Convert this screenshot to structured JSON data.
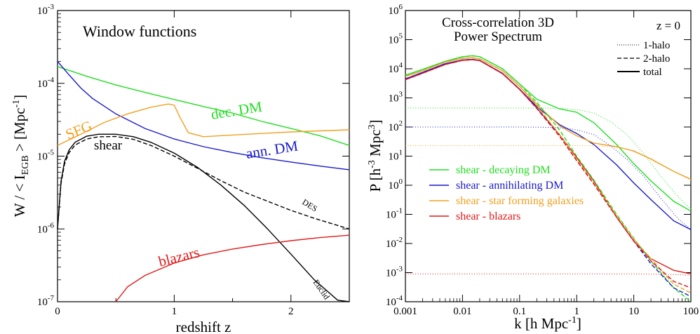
{
  "colors": {
    "green": "#22dd22",
    "blue": "#1a1acc",
    "orange": "#f0a020",
    "red": "#e01a1a",
    "black": "#000000"
  },
  "chart_data": [
    {
      "type": "line",
      "title": "Window functions",
      "xlabel": "redshift z",
      "ylabel": "W / < I_EGB > [Mpc^-1]",
      "xscale": "linear",
      "yscale": "log",
      "xlim": [
        0,
        2.5
      ],
      "ylim": [
        1e-07,
        0.001
      ],
      "x_ticks": [
        "0",
        "1",
        "2"
      ],
      "y_ticks": [
        "10^-7",
        "10^-6",
        "10^-5",
        "10^-4",
        "10^-3"
      ],
      "annotations": {
        "green": "dec. DM",
        "blue": "ann. DM",
        "orange": "SFG",
        "black": "shear",
        "red": "blazars",
        "des": "DES",
        "euclid": "Euclid"
      },
      "series": [
        {
          "key": "green",
          "color": "#22dd22",
          "style": "solid",
          "x": [
            0,
            0.25,
            0.5,
            0.75,
            1.0,
            1.25,
            1.5,
            1.75,
            2.0,
            2.25,
            2.5
          ],
          "y": [
            0.00017,
            0.000125,
            9.5e-05,
            7.5e-05,
            6e-05,
            4.8e-05,
            3.9e-05,
            3e-05,
            2.4e-05,
            1.9e-05,
            1.4e-05
          ]
        },
        {
          "key": "blue",
          "color": "#1a1acc",
          "style": "solid",
          "x": [
            0,
            0.1,
            0.2,
            0.3,
            0.5,
            0.75,
            1.0,
            1.25,
            1.5,
            1.75,
            2.0,
            2.25,
            2.5
          ],
          "y": [
            0.0002,
            0.00013,
            8.6e-05,
            6.2e-05,
            3.8e-05,
            2.4e-05,
            1.72e-05,
            1.35e-05,
            1.12e-05,
            9.5e-06,
            8.3e-06,
            7.3e-06,
            6.5e-06
          ]
        },
        {
          "key": "orange",
          "color": "#f0a020",
          "style": "solid",
          "x": [
            0,
            0.2,
            0.4,
            0.6,
            0.8,
            0.95,
            1.0,
            1.05,
            1.12,
            1.25,
            1.5,
            2.0,
            2.5
          ],
          "y": [
            1.4e-05,
            2e-05,
            2.9e-05,
            3.8e-05,
            4.7e-05,
            5.2e-05,
            5e-05,
            3.4e-05,
            2.1e-05,
            1.85e-05,
            1.95e-05,
            2.15e-05,
            2.3e-05
          ]
        },
        {
          "key": "shear_des",
          "color": "#000000",
          "style": "dashed",
          "x": [
            0,
            0.03,
            0.06,
            0.1,
            0.15,
            0.25,
            0.35,
            0.5,
            0.65,
            0.8,
            1.0,
            1.2,
            1.4,
            1.6,
            1.8,
            2.0,
            2.2,
            2.5
          ],
          "y": [
            1e-06,
            4.2e-06,
            7.8e-06,
            1.12e-05,
            1.42e-05,
            1.72e-05,
            1.84e-05,
            1.86e-05,
            1.7e-05,
            1.4e-05,
            1e-05,
            6.8e-06,
            4.6e-06,
            3.2e-06,
            2.4e-06,
            1.8e-06,
            1.4e-06,
            1e-06
          ]
        },
        {
          "key": "shear_euclid",
          "color": "#000000",
          "style": "solid",
          "x": [
            0,
            0.03,
            0.06,
            0.1,
            0.15,
            0.25,
            0.35,
            0.5,
            0.65,
            0.8,
            1.0,
            1.2,
            1.4,
            1.6,
            1.8,
            2.0,
            2.2,
            2.4,
            2.5
          ],
          "y": [
            1e-06,
            4.5e-06,
            8.5e-06,
            1.22e-05,
            1.55e-05,
            1.88e-05,
            2e-05,
            2e-05,
            1.85e-05,
            1.55e-05,
            1.1e-05,
            7e-06,
            4e-06,
            2.1e-06,
            1e-06,
            4.5e-07,
            2e-07,
            1.05e-07,
            7.5e-08
          ]
        },
        {
          "key": "red",
          "color": "#e01a1a",
          "style": "solid",
          "x": [
            0.5,
            0.6,
            0.75,
            1.0,
            1.25,
            1.5,
            1.75,
            2.0,
            2.25,
            2.5
          ],
          "y": [
            1e-07,
            1.6e-07,
            2.3e-07,
            3.4e-07,
            4.4e-07,
            5.3e-07,
            6.1e-07,
            6.9e-07,
            7.6e-07,
            8.2e-07
          ]
        }
      ]
    },
    {
      "type": "line",
      "title": "Cross-correlation 3D",
      "subtitle": "Power Spectrum",
      "annotation": "z = 0",
      "xlabel": "k [h Mpc^-1]",
      "ylabel": "P [h^-3 Mpc^3]",
      "xscale": "log",
      "yscale": "log",
      "xlim": [
        0.001,
        100
      ],
      "ylim": [
        0.0001,
        1000000.0
      ],
      "x_ticks": [
        "0.001",
        "0.01",
        "0.1",
        "1",
        "10",
        "100"
      ],
      "y_ticks": [
        "10^-4",
        "10^-3",
        "10^-2",
        "10^-1",
        "10^0",
        "10^1",
        "10^2",
        "10^3",
        "10^4",
        "10^5",
        "10^6"
      ],
      "style_legend": [
        {
          "label": "1-halo",
          "style": "dotted"
        },
        {
          "label": "2-halo",
          "style": "dashed"
        },
        {
          "label": "total",
          "style": "solid"
        }
      ],
      "legend": [
        {
          "label": "shear - decaying DM",
          "color": "#22dd22"
        },
        {
          "label": "shear - annihilating DM",
          "color": "#1a1acc"
        },
        {
          "label": "shear - star forming galaxies",
          "color": "#f0a020"
        },
        {
          "label": "shear - blazars",
          "color": "#e01a1a"
        }
      ],
      "series": [
        {
          "key": "green_total",
          "color": "#22dd22",
          "style": "solid",
          "x": [
            0.001,
            0.002,
            0.005,
            0.01,
            0.015,
            0.02,
            0.05,
            0.1,
            0.2,
            0.5,
            1,
            2,
            5,
            10,
            20,
            50,
            100
          ],
          "y": [
            6000,
            9500,
            18000,
            26000,
            28000,
            26000,
            10000,
            3000,
            900,
            420,
            320,
            140,
            25,
            5.5,
            1.4,
            0.28,
            0.13
          ]
        },
        {
          "key": "blue_total",
          "color": "#1a1acc",
          "style": "solid",
          "x": [
            0.001,
            0.002,
            0.005,
            0.01,
            0.015,
            0.02,
            0.05,
            0.1,
            0.2,
            0.5,
            1,
            2,
            5,
            10,
            20,
            50,
            100
          ],
          "y": [
            4500,
            7500,
            15000,
            20000,
            21000,
            19500,
            7000,
            2000,
            500,
            120,
            60,
            25,
            5,
            1.2,
            0.32,
            0.06,
            0.03
          ]
        },
        {
          "key": "orange_total",
          "color": "#f0a020",
          "style": "solid",
          "x": [
            0.001,
            0.002,
            0.005,
            0.01,
            0.015,
            0.02,
            0.05,
            0.1,
            0.2,
            0.5,
            1,
            2,
            5,
            10,
            20,
            50,
            100
          ],
          "y": [
            5500,
            8500,
            17000,
            23000,
            24000,
            22000,
            8500,
            2500,
            600,
            110,
            50,
            28,
            21,
            15,
            8,
            3,
            1.6
          ]
        },
        {
          "key": "red_total",
          "color": "#e01a1a",
          "style": "solid",
          "x": [
            0.001,
            0.002,
            0.005,
            0.01,
            0.015,
            0.02,
            0.05,
            0.1,
            0.2,
            0.5,
            1,
            2,
            5,
            10,
            20,
            50,
            100
          ],
          "y": [
            4200,
            7000,
            14000,
            19500,
            20500,
            19000,
            6800,
            1950,
            450,
            55,
            9,
            1.4,
            0.08,
            0.012,
            0.003,
            0.0012,
            0.0009
          ]
        },
        {
          "key": "green_2h",
          "color": "#22dd22",
          "style": "dashed",
          "x": [
            0.001,
            0.002,
            0.005,
            0.01,
            0.015,
            0.02,
            0.05,
            0.1,
            0.2,
            0.5,
            1,
            2,
            5,
            10,
            20,
            50,
            100
          ],
          "y": [
            6000,
            9500,
            18000,
            26000,
            28000,
            26000,
            10000,
            3000,
            700,
            80,
            10,
            1.5,
            0.1,
            0.015,
            0.0025,
            0.0003,
            0.0001
          ]
        },
        {
          "key": "blue_2h",
          "color": "#1a1acc",
          "style": "dashed",
          "x": [
            0.001,
            0.002,
            0.005,
            0.01,
            0.015,
            0.02,
            0.05,
            0.1,
            0.2,
            0.5,
            1,
            2,
            5,
            10,
            20,
            50,
            100
          ],
          "y": [
            4500,
            7500,
            15000,
            20000,
            21000,
            19500,
            7000,
            2000,
            450,
            50,
            7,
            1.1,
            0.08,
            0.012,
            0.002,
            0.0003,
            0.00015
          ]
        },
        {
          "key": "orange_2h",
          "color": "#f0a020",
          "style": "dashed",
          "x": [
            0.001,
            0.002,
            0.005,
            0.01,
            0.015,
            0.02,
            0.05,
            0.1,
            0.2,
            0.5,
            1,
            2,
            5,
            10,
            20,
            50,
            100
          ],
          "y": [
            5500,
            8500,
            17000,
            23000,
            24000,
            22000,
            8500,
            2500,
            550,
            55,
            8,
            1.2,
            0.09,
            0.014,
            0.003,
            0.0004,
            0.0002
          ]
        },
        {
          "key": "red_2h",
          "color": "#e01a1a",
          "style": "dashed",
          "x": [
            0.001,
            0.002,
            0.005,
            0.01,
            0.015,
            0.02,
            0.05,
            0.1,
            0.2,
            0.5,
            1,
            2,
            5,
            10,
            20,
            50,
            100
          ],
          "y": [
            4200,
            7000,
            14000,
            19500,
            20500,
            19000,
            6800,
            1950,
            430,
            48,
            7,
            1.1,
            0.08,
            0.012,
            0.0025,
            0.0005,
            0.0003
          ]
        },
        {
          "key": "green_1h",
          "color": "#22dd22",
          "style": "dotted",
          "x": [
            0.001,
            0.1,
            0.3,
            0.6,
            1,
            2,
            4,
            8,
            15,
            30,
            60,
            100
          ],
          "y": [
            450,
            450,
            445,
            430,
            400,
            300,
            150,
            50,
            12,
            2,
            0.4,
            0.15
          ]
        },
        {
          "key": "blue_1h",
          "color": "#1a1acc",
          "style": "dotted",
          "x": [
            0.001,
            0.1,
            0.3,
            0.6,
            1,
            2,
            4,
            8,
            15,
            30,
            60,
            100
          ],
          "y": [
            100,
            100,
            98,
            92,
            80,
            55,
            22,
            7,
            2,
            0.35,
            0.07,
            0.03
          ]
        },
        {
          "key": "orange_1h",
          "color": "#f0a020",
          "style": "dotted",
          "x": [
            0.001,
            0.5,
            1,
            2,
            4,
            8,
            15,
            30,
            60,
            100
          ],
          "y": [
            23,
            23,
            23,
            22.5,
            21.5,
            17,
            10,
            5,
            2.5,
            1.5
          ]
        },
        {
          "key": "red_1h",
          "color": "#e01a1a",
          "style": "dotted",
          "x": [
            0.001,
            10,
            30,
            60,
            100
          ],
          "y": [
            0.0009,
            0.0009,
            0.00088,
            0.00085,
            0.0008
          ]
        }
      ]
    }
  ]
}
